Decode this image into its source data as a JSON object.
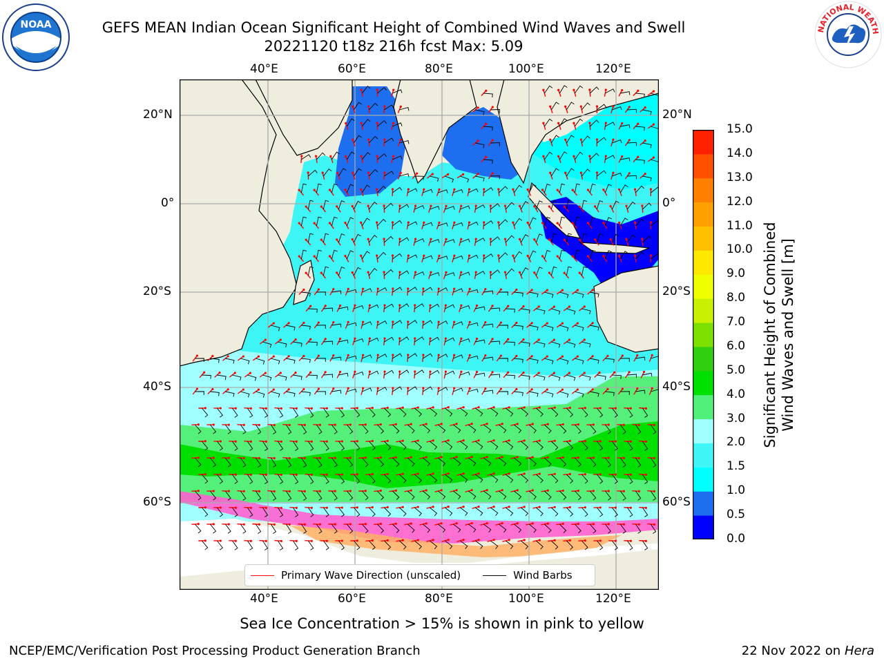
{
  "title_line1": "GEFS MEAN Indian Ocean Significant Height of Combined Wind Waves and Swell",
  "title_line2": "20221120 t18z 216h fcst   Max: 5.09",
  "logos": {
    "left": {
      "name": "noaa-logo",
      "text": "NOAA"
    },
    "right": {
      "name": "nws-logo",
      "text": "NATIONAL WEATHER SERVICE"
    }
  },
  "map": {
    "lon_ticks": [
      "40°E",
      "60°E",
      "80°E",
      "100°E",
      "120°E"
    ],
    "lat_ticks": [
      "20°N",
      "0°",
      "20°S",
      "40°S",
      "60°S"
    ],
    "lon_range": [
      20,
      130
    ],
    "lat_range": [
      -75,
      28
    ],
    "colors": {
      "land": "#efedde",
      "ocean_grid": "#aaaaaa",
      "wave_arrow": "#ff0000",
      "barb": "#000000"
    }
  },
  "legend": {
    "wave": "Primary Wave Direction (unscaled)",
    "barb": "Wind Barbs"
  },
  "colorbar": {
    "label_line1": "Significant Height of Combined",
    "label_line2": "Wind Waves and Swell [m]",
    "ticks": [
      "0.0",
      "0.5",
      "1.0",
      "1.5",
      "2.0",
      "3.0",
      "4.0",
      "5.0",
      "6.0",
      "7.0",
      "8.0",
      "9.0",
      "10.0",
      "11.0",
      "12.0",
      "13.0",
      "14.0",
      "15.0"
    ],
    "colors": [
      "#0000ff",
      "#1e6ef0",
      "#00ffff",
      "#40f5f5",
      "#a0ffff",
      "#50f07a",
      "#00e000",
      "#30d010",
      "#7ee000",
      "#c8f000",
      "#f0ff00",
      "#ffe800",
      "#ffc000",
      "#ffa000",
      "#ff8000",
      "#ff5000",
      "#ff2000"
    ]
  },
  "footer": {
    "sea_ice": "Sea Ice Concentration > 15% is shown in pink to yellow",
    "branch": "NCEP/EMC/Verification Post Processing Product Generation Branch",
    "date": "22 Nov 2022 on",
    "host": "Hera"
  }
}
